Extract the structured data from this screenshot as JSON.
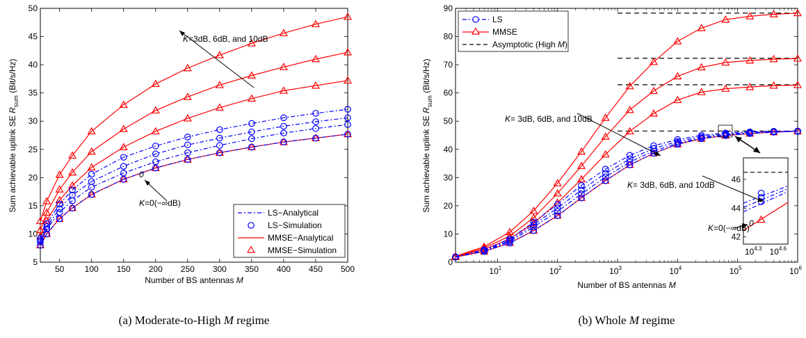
{
  "chart_data": [
    {
      "type": "line",
      "caption": "(a) Moderate-to-High",
      "caption_var": "M",
      "caption_suffix": "regime",
      "xlabel": "Number of BS antennas",
      "xlabel_var": "M",
      "ylabel": "Sum achievable uplink SE",
      "ylabel_var": "R",
      "ylabel_sub": "sum",
      "ylabel_unit": "(Bit/s/Hz)",
      "xlim": [
        20,
        500
      ],
      "ylim": [
        5,
        50
      ],
      "xticks": [
        50,
        100,
        150,
        200,
        250,
        300,
        350,
        400,
        450,
        500
      ],
      "yticks": [
        5,
        10,
        15,
        20,
        25,
        30,
        35,
        40,
        45,
        50
      ],
      "x": [
        20,
        30,
        50,
        70,
        100,
        150,
        200,
        250,
        300,
        350,
        400,
        450,
        500
      ],
      "x_markers_ls": [
        20,
        30,
        50,
        70,
        100,
        150,
        200,
        250,
        300,
        350,
        400,
        450,
        500
      ],
      "x_markers_mmse": [
        20,
        30,
        50,
        70,
        100,
        150,
        200,
        250,
        300,
        350,
        400,
        450,
        500
      ],
      "series": [
        {
          "name": "MMSE",
          "kind": "mmse",
          "values": [
            12.3,
            15.8,
            20.5,
            23.9,
            28.2,
            32.9,
            36.6,
            39.4,
            41.7,
            43.8,
            45.6,
            47.2,
            48.5
          ]
        },
        {
          "name": "MMSE",
          "kind": "mmse",
          "values": [
            10.7,
            13.8,
            17.9,
            20.9,
            24.6,
            28.6,
            31.9,
            34.3,
            36.4,
            38.1,
            39.6,
            41.0,
            42.2
          ]
        },
        {
          "name": "MMSE",
          "kind": "mmse",
          "values": [
            9.6,
            12.4,
            16.0,
            18.6,
            21.8,
            25.4,
            28.2,
            30.5,
            32.4,
            34.0,
            35.4,
            36.3,
            37.2
          ]
        },
        {
          "name": "MMSE",
          "kind": "mmse",
          "values": [
            8.0,
            10.0,
            12.7,
            14.6,
            17.0,
            19.7,
            21.7,
            23.2,
            24.4,
            25.4,
            26.3,
            27.0,
            27.7
          ]
        },
        {
          "name": "LS",
          "kind": "ls",
          "values": [
            9.2,
            11.8,
            15.3,
            17.8,
            20.6,
            23.6,
            25.6,
            27.2,
            28.5,
            29.6,
            30.6,
            31.4,
            32.1
          ]
        },
        {
          "name": "LS",
          "kind": "ls",
          "values": [
            8.9,
            11.3,
            14.5,
            16.9,
            19.3,
            22.0,
            24.2,
            25.8,
            27.0,
            28.1,
            29.1,
            29.9,
            30.6
          ]
        },
        {
          "name": "LS",
          "kind": "ls",
          "values": [
            8.6,
            10.9,
            13.8,
            15.9,
            18.3,
            20.8,
            22.8,
            24.4,
            25.7,
            26.9,
            27.9,
            28.7,
            29.4
          ]
        },
        {
          "name": "LS",
          "kind": "ls",
          "values": [
            8.0,
            10.0,
            12.7,
            14.6,
            17.0,
            19.7,
            21.7,
            23.2,
            24.4,
            25.4,
            26.3,
            27.0,
            27.7
          ]
        }
      ],
      "legend": {
        "placement": "bottom-right",
        "entries": [
          "LS−Analytical",
          "LS−Simulation",
          "MMSE−Analytical",
          "MMSE−Simulation"
        ]
      },
      "annotations": [
        {
          "var": "K",
          "text": "=3dB, 6dB, and 10dB"
        },
        {
          "var": "K",
          "text": "=0(−∞dB)"
        },
        {
          "text": "0"
        }
      ]
    },
    {
      "type": "line",
      "caption": "(b) Whole",
      "caption_var": "M",
      "caption_suffix": "regime",
      "xlabel": "Number of BS antennas",
      "xlabel_var": "M",
      "ylabel": "Sum achievable uplink SE",
      "ylabel_var": "R",
      "ylabel_sub": "sum",
      "ylabel_unit": "(Bit/s/Hz)",
      "xscale": "log",
      "xlim": [
        2,
        1000000
      ],
      "ylim": [
        0,
        90
      ],
      "xticks": [
        10,
        100,
        1000,
        10000,
        100000,
        1000000
      ],
      "xtick_labels": [
        [
          "10",
          "1"
        ],
        [
          "10",
          "2"
        ],
        [
          "10",
          "3"
        ],
        [
          "10",
          "4"
        ],
        [
          "10",
          "5"
        ],
        [
          "10",
          "6"
        ]
      ],
      "yticks": [
        0,
        10,
        20,
        30,
        40,
        50,
        60,
        70,
        80,
        90
      ],
      "x": [
        2,
        6,
        16,
        40,
        100,
        250,
        630,
        1600,
        4000,
        10000,
        25000,
        63000,
        160000,
        400000,
        1000000
      ],
      "x_markers_ls": [
        2,
        6,
        16,
        40,
        100,
        250,
        630,
        1600,
        4000,
        10000,
        25000,
        63000,
        160000,
        400000,
        1000000
      ],
      "x_markers_mmse": [
        2,
        6,
        16,
        40,
        100,
        250,
        630,
        1600,
        4000,
        10000,
        25000,
        63000,
        160000,
        400000,
        1000000
      ],
      "series": [
        {
          "name": "MMSE",
          "kind": "mmse",
          "values": [
            2.1,
            5.5,
            10.7,
            18.2,
            28.0,
            39.2,
            51.2,
            62.4,
            71.0,
            78.3,
            83.0,
            86.0,
            87.2,
            87.9,
            88.3
          ]
        },
        {
          "name": "MMSE",
          "kind": "mmse",
          "values": [
            2.0,
            5.0,
            9.3,
            15.7,
            24.4,
            34.1,
            44.5,
            54.0,
            60.7,
            65.9,
            69.1,
            70.8,
            71.5,
            72.0,
            72.2
          ]
        },
        {
          "name": "MMSE",
          "kind": "mmse",
          "values": [
            1.9,
            4.5,
            8.3,
            13.8,
            21.1,
            29.4,
            38.2,
            46.4,
            52.7,
            57.5,
            60.3,
            61.5,
            62.1,
            62.6,
            62.8
          ]
        },
        {
          "name": "MMSE",
          "kind": "mmse",
          "values": [
            1.8,
            3.8,
            6.8,
            11.2,
            16.5,
            22.8,
            28.9,
            34.5,
            38.6,
            41.8,
            43.8,
            44.9,
            45.6,
            46.1,
            46.4
          ]
        },
        {
          "name": "LS",
          "kind": "ls",
          "values": [
            1.9,
            4.4,
            8.2,
            14.2,
            20.5,
            27.2,
            33.0,
            37.9,
            41.3,
            43.5,
            45.0,
            45.8,
            46.2,
            46.4,
            46.5
          ]
        },
        {
          "name": "LS",
          "kind": "ls",
          "values": [
            1.9,
            4.2,
            7.7,
            13.3,
            19.2,
            25.6,
            31.5,
            36.6,
            40.3,
            42.8,
            44.5,
            45.5,
            46.0,
            46.3,
            46.5
          ]
        },
        {
          "name": "LS",
          "kind": "ls",
          "values": [
            1.8,
            4.0,
            7.3,
            12.5,
            18.0,
            24.2,
            30.2,
            35.5,
            39.4,
            42.2,
            44.1,
            45.2,
            45.8,
            46.2,
            46.4
          ]
        },
        {
          "name": "LS",
          "kind": "ls",
          "values": [
            1.8,
            3.8,
            6.8,
            11.2,
            16.5,
            22.8,
            28.9,
            34.5,
            38.6,
            41.8,
            43.8,
            44.9,
            45.6,
            46.1,
            46.4
          ]
        }
      ],
      "asymptotes": [
        88.3,
        72.3,
        62.9,
        46.5
      ],
      "legend": {
        "placement": "top-left",
        "entries": [
          "LS",
          "MMSE",
          "Asymptotic (High"
        ],
        "entry_var": "M",
        "entry_suffix": ")"
      },
      "annotations": [
        {
          "var": "K",
          "text": "= 3dB, 6dB, and 10dB"
        },
        {
          "var": "K",
          "text": "= 3dB, 6dB, and 10dB"
        },
        {
          "var": "K",
          "text": "=0(−∞dB)"
        },
        {
          "text": "0"
        }
      ],
      "inset": {
        "xlim_exp": [
          4.3,
          4.6
        ],
        "xticks": [
          [
            "10",
            "4.3"
          ],
          [
            "10",
            "4.6"
          ]
        ],
        "ylim": [
          41.5,
          47.5
        ],
        "yticks": [
          42,
          44,
          46
        ],
        "asymptote": 46.5
      }
    }
  ]
}
